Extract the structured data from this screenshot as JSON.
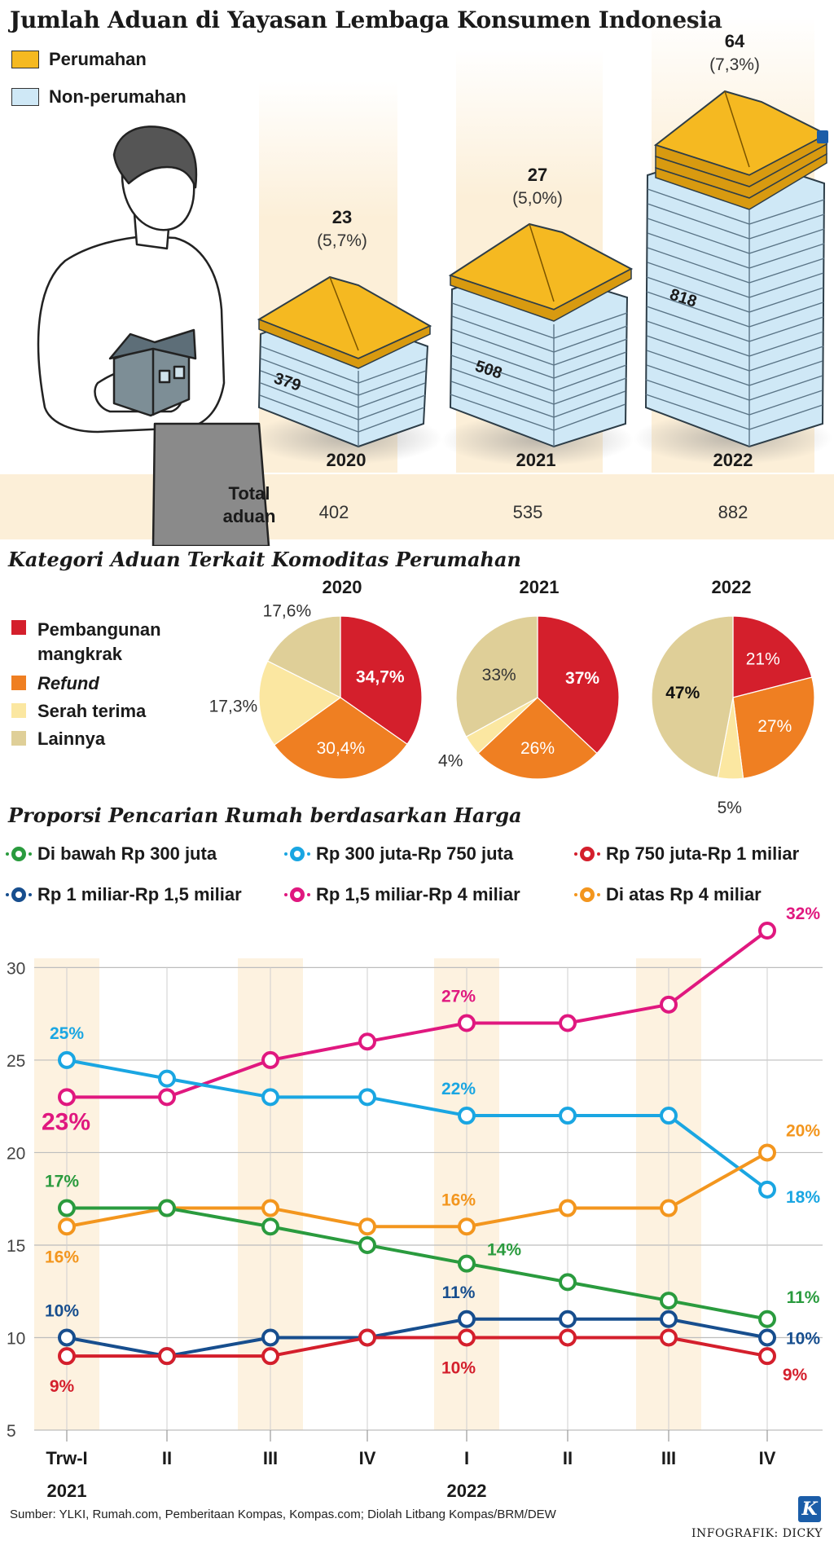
{
  "title": "Jumlah Aduan di Yayasan Lembaga Konsumen Indonesia",
  "colors": {
    "perumahan": "#f5b921",
    "non_perumahan": "#cfe8f6",
    "band": "#fcefd8",
    "red": "#d41f2c",
    "orange": "#ef7f22",
    "light_yellow": "#fbe7a1",
    "tan": "#dfcf98",
    "green": "#2a9b3e",
    "cyan": "#1aa6e2",
    "navy": "#174e8e",
    "magenta": "#e0187f",
    "gold": "#f3961e"
  },
  "legend_top": [
    {
      "label": "Perumahan",
      "icon": "yellow-swatch"
    },
    {
      "label": "Non-perumahan",
      "icon": "lightblue-swatch"
    }
  ],
  "stacks": [
    {
      "year": "2020",
      "perumahan": "23",
      "pct": "(5,7%)",
      "non_perumahan": "379",
      "total": "402"
    },
    {
      "year": "2021",
      "perumahan": "27",
      "pct": "(5,0%)",
      "non_perumahan": "508",
      "total": "535"
    },
    {
      "year": "2022",
      "perumahan": "64",
      "pct": "(7,3%)",
      "non_perumahan": "818",
      "total": "882"
    }
  ],
  "total_label": "Total aduan",
  "total_label_line1": "Total",
  "total_label_line2": "aduan",
  "section2_title": "Kategori Aduan Terkait Komoditas Perumahan",
  "categories": [
    {
      "label": "Pembangunan mangkrak",
      "line1": "Pembangunan",
      "line2": "mangkrak",
      "italic": false
    },
    {
      "label": "Refund",
      "line1": "Refund",
      "line2": "",
      "italic": true
    },
    {
      "label": "Serah terima",
      "line1": "Serah terima",
      "line2": "",
      "italic": false
    },
    {
      "label": "Lainnya",
      "line1": "Lainnya",
      "line2": "",
      "italic": false
    }
  ],
  "pies": [
    {
      "year": "2020",
      "values": [
        34.7,
        30.4,
        17.3,
        17.6
      ],
      "labels": [
        "34,7%",
        "30,4%",
        "17,3%",
        "17,6%"
      ]
    },
    {
      "year": "2021",
      "values": [
        37,
        26,
        4,
        33
      ],
      "labels": [
        "37%",
        "26%",
        "4%",
        "33%"
      ]
    },
    {
      "year": "2022",
      "values": [
        21,
        27,
        5,
        47
      ],
      "labels": [
        "21%",
        "27%",
        "5%",
        "47%"
      ]
    }
  ],
  "section3_title": "Proporsi Pencarian Rumah berdasarkan Harga",
  "chart_data": [
    {
      "type": "bar",
      "title": "Jumlah Aduan di Yayasan Lembaga Konsumen Indonesia",
      "categories": [
        "2020",
        "2021",
        "2022"
      ],
      "series": [
        {
          "name": "Perumahan",
          "values": [
            23,
            27,
            64
          ]
        },
        {
          "name": "Non-perumahan",
          "values": [
            379,
            508,
            818
          ]
        }
      ],
      "totals": [
        402,
        535,
        882
      ],
      "perumahan_share": [
        "(5,7%)",
        "(5,0%)",
        "(7,3%)"
      ]
    },
    {
      "type": "pie",
      "title": "Kategori Aduan Terkait Komoditas Perumahan",
      "categories": [
        "Pembangunan mangkrak",
        "Refund",
        "Serah terima",
        "Lainnya"
      ],
      "series": [
        {
          "name": "2020",
          "values": [
            34.7,
            30.4,
            17.3,
            17.6
          ]
        },
        {
          "name": "2021",
          "values": [
            37,
            26,
            4,
            33
          ]
        },
        {
          "name": "2022",
          "values": [
            21,
            27,
            5,
            47
          ]
        }
      ]
    },
    {
      "type": "line",
      "title": "Proporsi Pencarian Rumah berdasarkan Harga",
      "x": [
        "Trw-I",
        "II",
        "III",
        "IV",
        "I",
        "II",
        "III",
        "IV"
      ],
      "x_years": [
        {
          "label": "2021",
          "index": 0
        },
        {
          "label": "2022",
          "index": 4
        }
      ],
      "yticks": [
        5,
        10,
        15,
        20,
        25,
        30
      ],
      "ylim": [
        5,
        32
      ],
      "grid": true,
      "series": [
        {
          "name": "Di bawah Rp 300 juta",
          "color": "#2a9b3e",
          "values": [
            17,
            17,
            16,
            15,
            14,
            13,
            12,
            11
          ]
        },
        {
          "name": "Rp 300 juta-Rp 750 juta",
          "color": "#1aa6e2",
          "values": [
            25,
            24,
            23,
            23,
            22,
            22,
            22,
            18
          ]
        },
        {
          "name": "Rp 750 juta-Rp 1 miliar",
          "color": "#d41f2c",
          "values": [
            9,
            9,
            9,
            10,
            10,
            10,
            10,
            9
          ]
        },
        {
          "name": "Rp 1 miliar-Rp 1,5 miliar",
          "color": "#174e8e",
          "values": [
            10,
            9,
            10,
            10,
            11,
            11,
            11,
            10
          ]
        },
        {
          "name": "Rp 1,5 miliar-Rp 4 miliar",
          "color": "#e0187f",
          "values": [
            23,
            23,
            25,
            26,
            27,
            27,
            28,
            32
          ]
        },
        {
          "name": "Di atas Rp 4 miliar",
          "color": "#f3961e",
          "values": [
            16,
            17,
            17,
            16,
            16,
            17,
            17,
            20
          ]
        }
      ],
      "annotations": [
        {
          "series": 1,
          "i": 0,
          "text": "25%"
        },
        {
          "series": 4,
          "i": 0,
          "text": "23%"
        },
        {
          "series": 0,
          "i": 0,
          "text": "17%"
        },
        {
          "series": 5,
          "i": 0,
          "text": "16%"
        },
        {
          "series": 3,
          "i": 0,
          "text": "10%"
        },
        {
          "series": 2,
          "i": 0,
          "text": "9%"
        },
        {
          "series": 4,
          "i": 4,
          "text": "27%"
        },
        {
          "series": 1,
          "i": 4,
          "text": "22%"
        },
        {
          "series": 5,
          "i": 4,
          "text": "16%"
        },
        {
          "series": 0,
          "i": 4,
          "text": "14%"
        },
        {
          "series": 3,
          "i": 4,
          "text": "11%"
        },
        {
          "series": 2,
          "i": 4,
          "text": "10%"
        },
        {
          "series": 4,
          "i": 7,
          "text": "32%"
        },
        {
          "series": 5,
          "i": 7,
          "text": "20%"
        },
        {
          "series": 1,
          "i": 7,
          "text": "18%"
        },
        {
          "series": 0,
          "i": 7,
          "text": "11%"
        },
        {
          "series": 3,
          "i": 7,
          "text": "10%"
        },
        {
          "series": 2,
          "i": 7,
          "text": "9%"
        }
      ]
    }
  ],
  "footer": "Sumber: YLKI, Rumah.com, Pemberitaan Kompas, Kompas.com; Diolah Litbang Kompas/BRM/DEW",
  "credit": "INFOGRAFIK: DICKY",
  "logo": "K"
}
